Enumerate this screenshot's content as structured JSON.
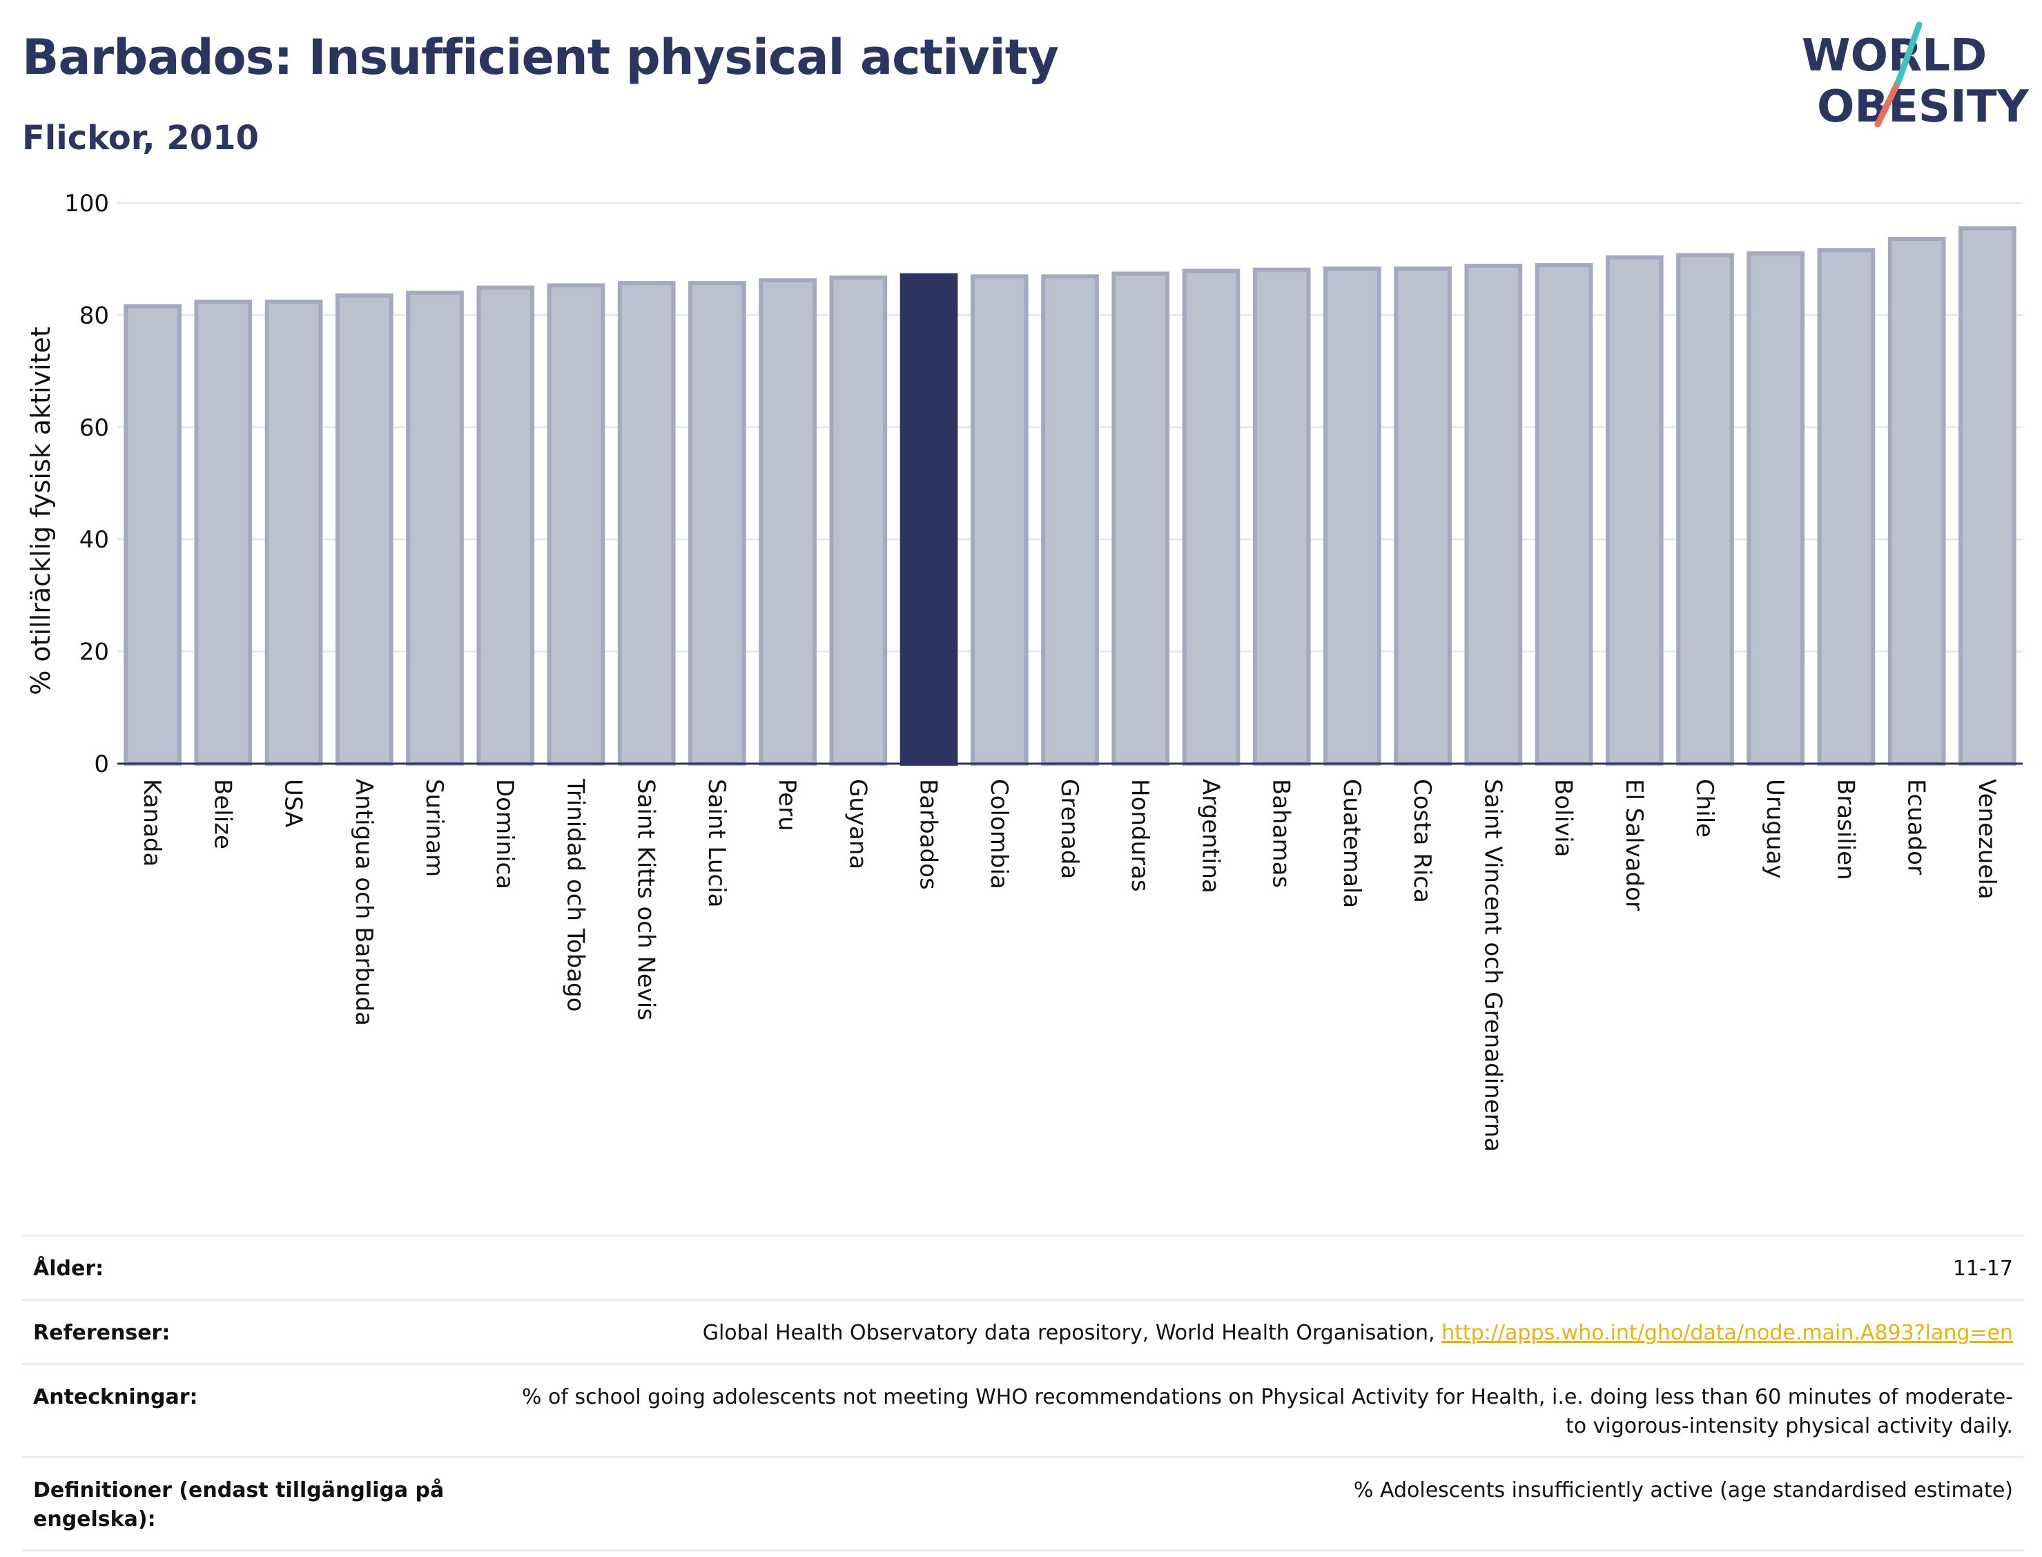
{
  "header": {
    "title": "Barbados: Insufficient physical activity",
    "subtitle": "Flickor, 2010"
  },
  "logo": {
    "line1": "WORLD",
    "line2": "OBESITY",
    "colors": {
      "text": "#2b3560",
      "slash_top": "#3fc1c0",
      "slash_bottom": "#e8705f"
    }
  },
  "chart_data": {
    "type": "bar",
    "ylabel": "% otillräcklig fysisk aktivitet",
    "ylim": [
      0,
      100
    ],
    "yticks": [
      0,
      20,
      40,
      60,
      80,
      100
    ],
    "grid": true,
    "highlight": "Barbados",
    "colors": {
      "bar": "#bcc1d0",
      "bar_edge": "#a3a9bf",
      "highlight": "#2b3560"
    },
    "categories": [
      "Kanada",
      "Belize",
      "USA",
      "Antigua och Barbuda",
      "Surinam",
      "Dominica",
      "Trinidad och Tobago",
      "Saint Kitts och Nevis",
      "Saint Lucia",
      "Peru",
      "Guyana",
      "Barbados",
      "Colombia",
      "Grenada",
      "Honduras",
      "Argentina",
      "Bahamas",
      "Guatemala",
      "Costa Rica",
      "Saint Vincent och Grenadinerna",
      "Bolivia",
      "El Salvador",
      "Chile",
      "Uruguay",
      "Brasilien",
      "Ecuador",
      "Venezuela"
    ],
    "values": [
      81.6,
      82.4,
      82.4,
      83.5,
      84.0,
      84.9,
      85.3,
      85.7,
      85.7,
      86.2,
      86.7,
      87.1,
      86.9,
      86.9,
      87.4,
      87.9,
      88.1,
      88.3,
      88.3,
      88.8,
      88.9,
      90.3,
      90.7,
      91.0,
      91.6,
      93.6,
      95.5
    ]
  },
  "info": {
    "age": {
      "label": "Ålder:",
      "value": "11-17"
    },
    "references": {
      "label": "Referenser:",
      "text": "Global Health Observatory data repository, World Health Organisation,",
      "link": "http://apps.who.int/gho/data/node.main.A893?lang=en"
    },
    "notes": {
      "label": "Anteckningar:",
      "value": "% of school going adolescents not meeting WHO recommendations on Physical Activity for Health, i.e. doing less than 60 minutes of moderate- to vigorous-intensity physical activity daily."
    },
    "definitions": {
      "label": "Definitioner (endast tillgängliga på engelska):",
      "value": "% Adolescents insufficiently active (age standardised estimate)"
    }
  }
}
